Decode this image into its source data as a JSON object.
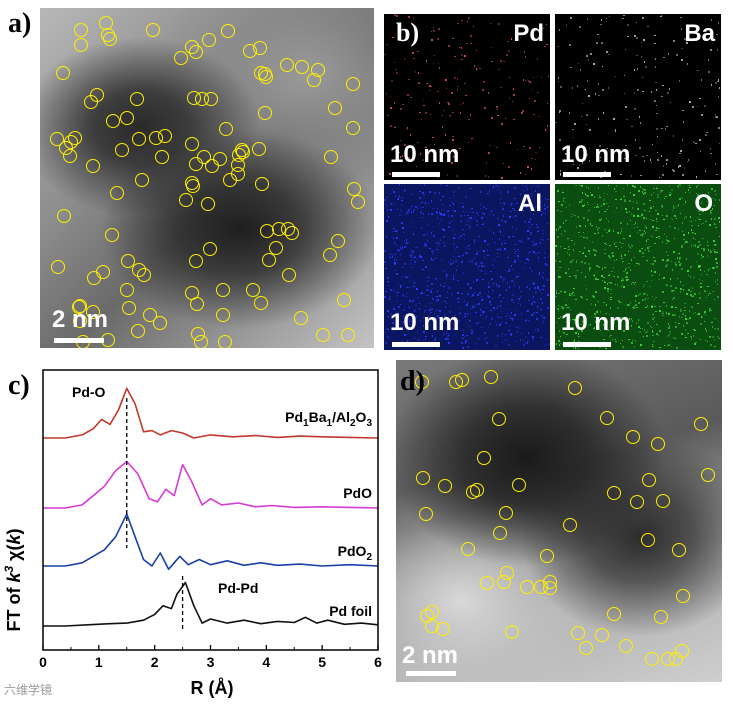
{
  "panels": {
    "a": {
      "letter": "a)",
      "scalebar": "2 nm"
    },
    "b": {
      "letter": "b)",
      "maps": [
        {
          "element": "Pd",
          "scalebar": "10 nm",
          "color": "#000000",
          "dot_color": "#d05050"
        },
        {
          "element": "Ba",
          "scalebar": "10 nm",
          "color": "#000000",
          "dot_color": "#b0b0b0"
        },
        {
          "element": "Al",
          "scalebar": "10 nm",
          "color": "#0a1a6e",
          "dot_color": "#2a3cff"
        },
        {
          "element": "O",
          "scalebar": "10 nm",
          "color": "#0d5a12",
          "dot_color": "#3cd23c"
        }
      ]
    },
    "c": {
      "letter": "c)"
    },
    "d": {
      "letter": "d)",
      "scalebar": "2 nm"
    }
  },
  "chart_data": {
    "type": "line",
    "xlabel": "R (Å)",
    "ylabel": "FT of k3 χ(k)",
    "xlim": [
      0,
      6
    ],
    "xticks": [
      0,
      1,
      2,
      3,
      4,
      5,
      6
    ],
    "annotations": [
      {
        "text": "Pd-O",
        "x": 1.5
      },
      {
        "text": "Pd-Pd",
        "x": 2.5
      }
    ],
    "series": [
      {
        "name": "Pd1Ba1/Al2O3",
        "color": "#c0392b",
        "offset": 3,
        "x": [
          0,
          0.4,
          0.7,
          0.9,
          1.05,
          1.2,
          1.35,
          1.5,
          1.65,
          1.8,
          1.95,
          2.1,
          2.3,
          2.5,
          2.7,
          3.0,
          3.4,
          3.8,
          4.2,
          4.6,
          5.0,
          5.5,
          6.0
        ],
        "y": [
          0.0,
          0.0,
          0.05,
          0.15,
          0.3,
          0.22,
          0.45,
          0.8,
          0.55,
          0.1,
          0.12,
          0.05,
          0.12,
          0.08,
          0.0,
          0.05,
          0.02,
          0.04,
          0.01,
          0.03,
          0.02,
          0.01,
          0.0
        ]
      },
      {
        "name": "PdO",
        "color": "#d63ad6",
        "offset": 2,
        "x": [
          0,
          0.4,
          0.7,
          0.9,
          1.1,
          1.3,
          1.5,
          1.7,
          1.9,
          2.05,
          2.2,
          2.35,
          2.5,
          2.65,
          2.85,
          3.0,
          3.2,
          3.5,
          3.8,
          4.1,
          4.5,
          5.0,
          5.5,
          6.0
        ],
        "y": [
          0.0,
          0.0,
          0.05,
          0.2,
          0.35,
          0.6,
          0.75,
          0.55,
          0.15,
          0.1,
          0.3,
          0.2,
          0.7,
          0.45,
          0.05,
          0.15,
          0.05,
          0.08,
          0.02,
          0.04,
          0.01,
          0.02,
          0.01,
          0.0
        ]
      },
      {
        "name": "PdO2",
        "color": "#1a3fa8",
        "offset": 1,
        "x": [
          0,
          0.4,
          0.7,
          0.9,
          1.1,
          1.3,
          1.5,
          1.65,
          1.8,
          1.95,
          2.1,
          2.25,
          2.45,
          2.6,
          2.8,
          3.0,
          3.3,
          3.6,
          3.9,
          4.2,
          4.6,
          5.0,
          5.5,
          6.0
        ],
        "y": [
          0.0,
          0.0,
          0.05,
          0.15,
          0.25,
          0.45,
          0.8,
          0.45,
          0.1,
          0.0,
          0.2,
          -0.05,
          0.15,
          0.02,
          0.1,
          0.02,
          0.08,
          0.01,
          0.05,
          0.01,
          0.03,
          0.0,
          0.02,
          0.0
        ]
      },
      {
        "name": "Pd foil",
        "color": "#111111",
        "offset": 0,
        "x": [
          0,
          0.4,
          0.8,
          1.2,
          1.5,
          1.8,
          2.0,
          2.15,
          2.3,
          2.4,
          2.55,
          2.7,
          2.85,
          3.0,
          3.3,
          3.6,
          3.9,
          4.2,
          4.5,
          4.7,
          4.9,
          5.1,
          5.4,
          5.7,
          6.0
        ],
        "y": [
          0.0,
          0.0,
          0.02,
          0.04,
          0.05,
          0.1,
          0.2,
          0.35,
          0.3,
          0.55,
          0.75,
          0.35,
          0.05,
          0.12,
          0.05,
          0.1,
          0.04,
          0.08,
          0.06,
          0.15,
          0.05,
          0.1,
          0.03,
          0.05,
          0.02
        ]
      }
    ]
  },
  "watermark": "六维学镜"
}
